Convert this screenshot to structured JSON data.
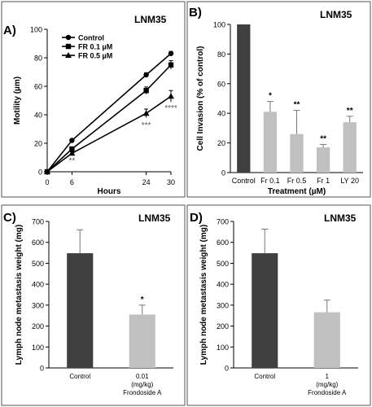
{
  "panels": {
    "A": {
      "letter": "A)",
      "tag": "LNM35"
    },
    "B": {
      "letter": "B)",
      "tag": "LNM35"
    },
    "C": {
      "letter": "C)",
      "tag": "LNM35"
    },
    "D": {
      "letter": "D)",
      "tag": "LNM35"
    }
  },
  "chart_data": [
    {
      "panel": "A",
      "type": "line",
      "title": "LNM35",
      "xlabel": "Hours",
      "ylabel": "Motility (µm)",
      "x": [
        0,
        6,
        24,
        30
      ],
      "xlim": [
        0,
        30
      ],
      "ylim": [
        0,
        100
      ],
      "yticks": [
        0,
        20,
        40,
        60,
        80,
        100
      ],
      "xticks": [
        0,
        6,
        24,
        30
      ],
      "legend": "top-left",
      "grid": false,
      "series": [
        {
          "name": "Control",
          "marker": "circle",
          "values": [
            0,
            22,
            68,
            83
          ],
          "errors": [
            0,
            1,
            1.5,
            1.5
          ]
        },
        {
          "name": "FR 0.1 µM",
          "marker": "square",
          "values": [
            0,
            16,
            57,
            75
          ],
          "errors": [
            0,
            1,
            2.5,
            3
          ]
        },
        {
          "name": "FR 0.5 µM",
          "marker": "triangle",
          "values": [
            0,
            13,
            41,
            53
          ],
          "errors": [
            0,
            1,
            3,
            4
          ]
        }
      ],
      "annotations": [
        {
          "x": 6,
          "y": 6,
          "text": "**"
        },
        {
          "x": 24,
          "y": 31,
          "text": "***"
        },
        {
          "x": 30,
          "y": 43,
          "text": "****"
        }
      ]
    },
    {
      "panel": "B",
      "type": "bar",
      "title": "LNM35",
      "xlabel": "Treatment (µM)",
      "ylabel": "Cell Invasion (% of control)",
      "categories": [
        "Control",
        "Fr 0.1",
        "Fr 0.5",
        "Fr 1",
        "LY 20"
      ],
      "values": [
        100,
        41,
        26,
        17,
        34
      ],
      "errors": [
        0,
        7,
        16,
        2,
        4
      ],
      "bar_colors": [
        "#3f3f3f",
        "#c0c0c0",
        "#c0c0c0",
        "#c0c0c0",
        "#c0c0c0"
      ],
      "annotations": [
        "",
        "*",
        "**",
        "**",
        "**"
      ],
      "ylim": [
        0,
        100
      ],
      "yticks": [
        0,
        20,
        40,
        60,
        80,
        100
      ],
      "grid": false
    },
    {
      "panel": "C",
      "type": "bar",
      "title": "LNM35",
      "xlabel": "",
      "ylabel": "Lymph node metastasis weight (mg)",
      "categories": [
        [
          "Control"
        ],
        [
          "0.01",
          "(mg/kg)",
          "Frondoside A"
        ]
      ],
      "values": [
        548,
        255
      ],
      "errors": [
        112,
        45
      ],
      "bar_colors": [
        "#3f3f3f",
        "#c0c0c0"
      ],
      "annotations": [
        "",
        "*"
      ],
      "ylim": [
        0,
        700
      ],
      "yticks": [
        0,
        100,
        200,
        300,
        400,
        500,
        600,
        700
      ],
      "grid": false
    },
    {
      "panel": "D",
      "type": "bar",
      "title": "LNM35",
      "xlabel": "",
      "ylabel": "Lymph node metastasis weight (mg)",
      "categories": [
        [
          "Control"
        ],
        [
          "1",
          "(mg/kg)",
          "Frondoside A"
        ]
      ],
      "values": [
        548,
        266
      ],
      "errors": [
        115,
        58
      ],
      "bar_colors": [
        "#3f3f3f",
        "#c0c0c0"
      ],
      "annotations": [
        "",
        ""
      ],
      "ylim": [
        0,
        700
      ],
      "yticks": [
        0,
        100,
        200,
        300,
        400,
        500,
        600,
        700
      ],
      "grid": false
    }
  ]
}
